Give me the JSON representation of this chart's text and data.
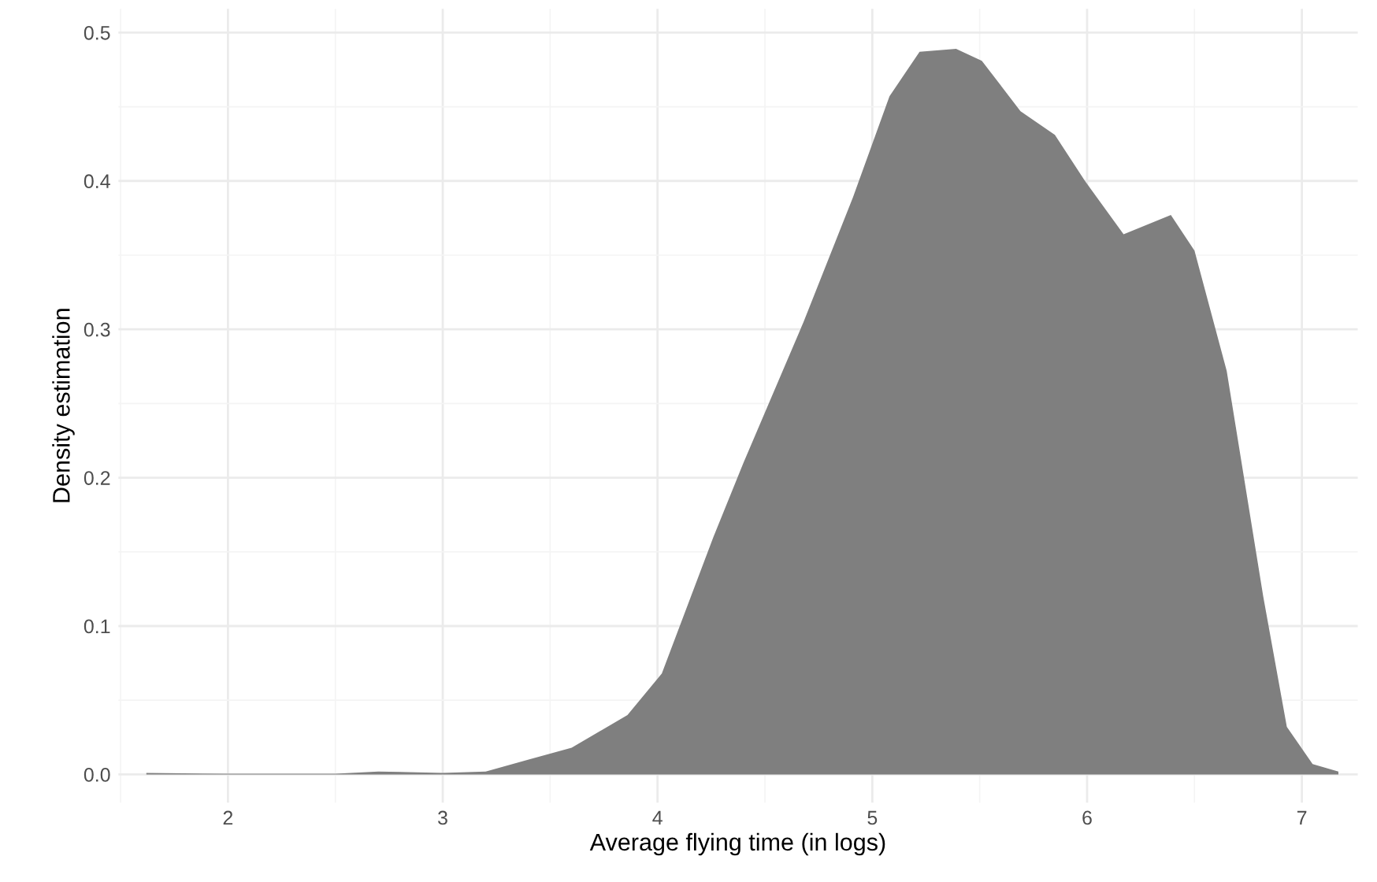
{
  "chart_data": {
    "type": "area",
    "xlabel": "Average flying time (in logs)",
    "ylabel": "Density estimation",
    "x": [
      1.62,
      2.0,
      2.5,
      2.7,
      3.0,
      3.2,
      3.4,
      3.6,
      3.86,
      4.02,
      4.26,
      4.4,
      4.68,
      4.91,
      5.08,
      5.22,
      5.39,
      5.51,
      5.69,
      5.85,
      5.99,
      6.17,
      6.39,
      6.5,
      6.65,
      6.82,
      6.93,
      7.05,
      7.17
    ],
    "series": [
      {
        "color": "#7f7f7f",
        "values": [
          0.001,
          0.0005,
          0.0005,
          0.002,
          0.001,
          0.002,
          0.01,
          0.018,
          0.04,
          0.068,
          0.16,
          0.21,
          0.305,
          0.389,
          0.457,
          0.487,
          0.489,
          0.481,
          0.447,
          0.431,
          0.4,
          0.364,
          0.377,
          0.353,
          0.272,
          0.12,
          0.032,
          0.007,
          0.002
        ]
      }
    ],
    "xlim": [
      1.49,
      7.26
    ],
    "ylim": [
      -0.019,
      0.516
    ],
    "xticks": [
      2,
      3,
      4,
      5,
      6,
      7
    ],
    "yticks": [
      {
        "value": 0.0,
        "label": "0.0"
      },
      {
        "value": 0.1,
        "label": "0.1"
      },
      {
        "value": 0.2,
        "label": "0.2"
      },
      {
        "value": 0.3,
        "label": "0.3"
      },
      {
        "value": 0.4,
        "label": "0.4"
      },
      {
        "value": 0.5,
        "label": "0.5"
      }
    ],
    "grid": true
  }
}
